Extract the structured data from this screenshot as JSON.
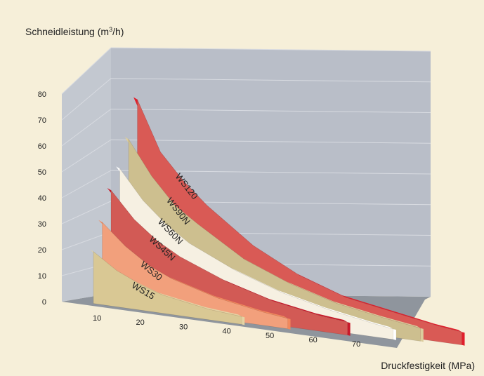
{
  "chart_data": {
    "type": "area",
    "title": "",
    "ylabel_main": "Schneidleistung (m",
    "ylabel_sup": "3",
    "ylabel_end": "/h)",
    "xlabel": "Druckfestigkeit (MPa)",
    "y_ticks": [
      "0",
      "10",
      "20",
      "30",
      "40",
      "50",
      "60",
      "70",
      "80"
    ],
    "x_ticks": [
      "10",
      "20",
      "30",
      "40",
      "50",
      "60",
      "70"
    ],
    "ylim": [
      0,
      80
    ],
    "xlim": [
      0,
      80
    ],
    "grid": true,
    "series": [
      {
        "name": "WS120",
        "label": "WS120",
        "color": "#d95a55",
        "edge": "#e01e2b",
        "points": [
          [
            5,
            77
          ],
          [
            10,
            58
          ],
          [
            15,
            48
          ],
          [
            20,
            40
          ],
          [
            30,
            27
          ],
          [
            40,
            18
          ],
          [
            50,
            12
          ],
          [
            60,
            9
          ],
          [
            70,
            6
          ],
          [
            75,
            5
          ]
        ]
      },
      {
        "name": "WS90N",
        "label": "WS90N",
        "color": "#cdbf8f",
        "edge": "#dbcc9d",
        "points": [
          [
            5,
            62
          ],
          [
            10,
            49
          ],
          [
            15,
            39
          ],
          [
            20,
            33
          ],
          [
            30,
            22
          ],
          [
            40,
            15
          ],
          [
            50,
            10
          ],
          [
            60,
            7
          ],
          [
            68,
            5
          ]
        ]
      },
      {
        "name": "WS60N",
        "label": "WS60N",
        "color": "#f6f0e2",
        "edge": "#ffffff",
        "points": [
          [
            5,
            51
          ],
          [
            10,
            40
          ],
          [
            15,
            32
          ],
          [
            20,
            26
          ],
          [
            30,
            18
          ],
          [
            40,
            12
          ],
          [
            50,
            8
          ],
          [
            60,
            5
          ],
          [
            64,
            4
          ]
        ]
      },
      {
        "name": "WS45N",
        "label": "WS45N",
        "color": "#d25a55",
        "edge": "#c8192a",
        "points": [
          [
            5,
            43
          ],
          [
            10,
            33
          ],
          [
            15,
            26
          ],
          [
            20,
            21
          ],
          [
            30,
            14
          ],
          [
            40,
            9
          ],
          [
            50,
            6
          ],
          [
            56,
            5
          ]
        ]
      },
      {
        "name": "WS30",
        "label": "WS30",
        "color": "#f2a07c",
        "edge": "#f1895d",
        "points": [
          [
            5,
            31
          ],
          [
            10,
            23
          ],
          [
            15,
            17
          ],
          [
            20,
            13
          ],
          [
            30,
            8
          ],
          [
            40,
            5
          ],
          [
            45,
            4
          ]
        ]
      },
      {
        "name": "WS15",
        "label": "WS15",
        "color": "#d9c894",
        "edge": "#e4d4a4",
        "points": [
          [
            5,
            20
          ],
          [
            10,
            14
          ],
          [
            15,
            10
          ],
          [
            20,
            7
          ],
          [
            30,
            4
          ],
          [
            37,
            3
          ]
        ]
      }
    ]
  },
  "colors": {
    "background": "#f6efd9",
    "back_wall": "#b9bec8",
    "side_wall": "#c3c8d0",
    "floor": "#8f959d",
    "grid": "#d8dbe1"
  }
}
